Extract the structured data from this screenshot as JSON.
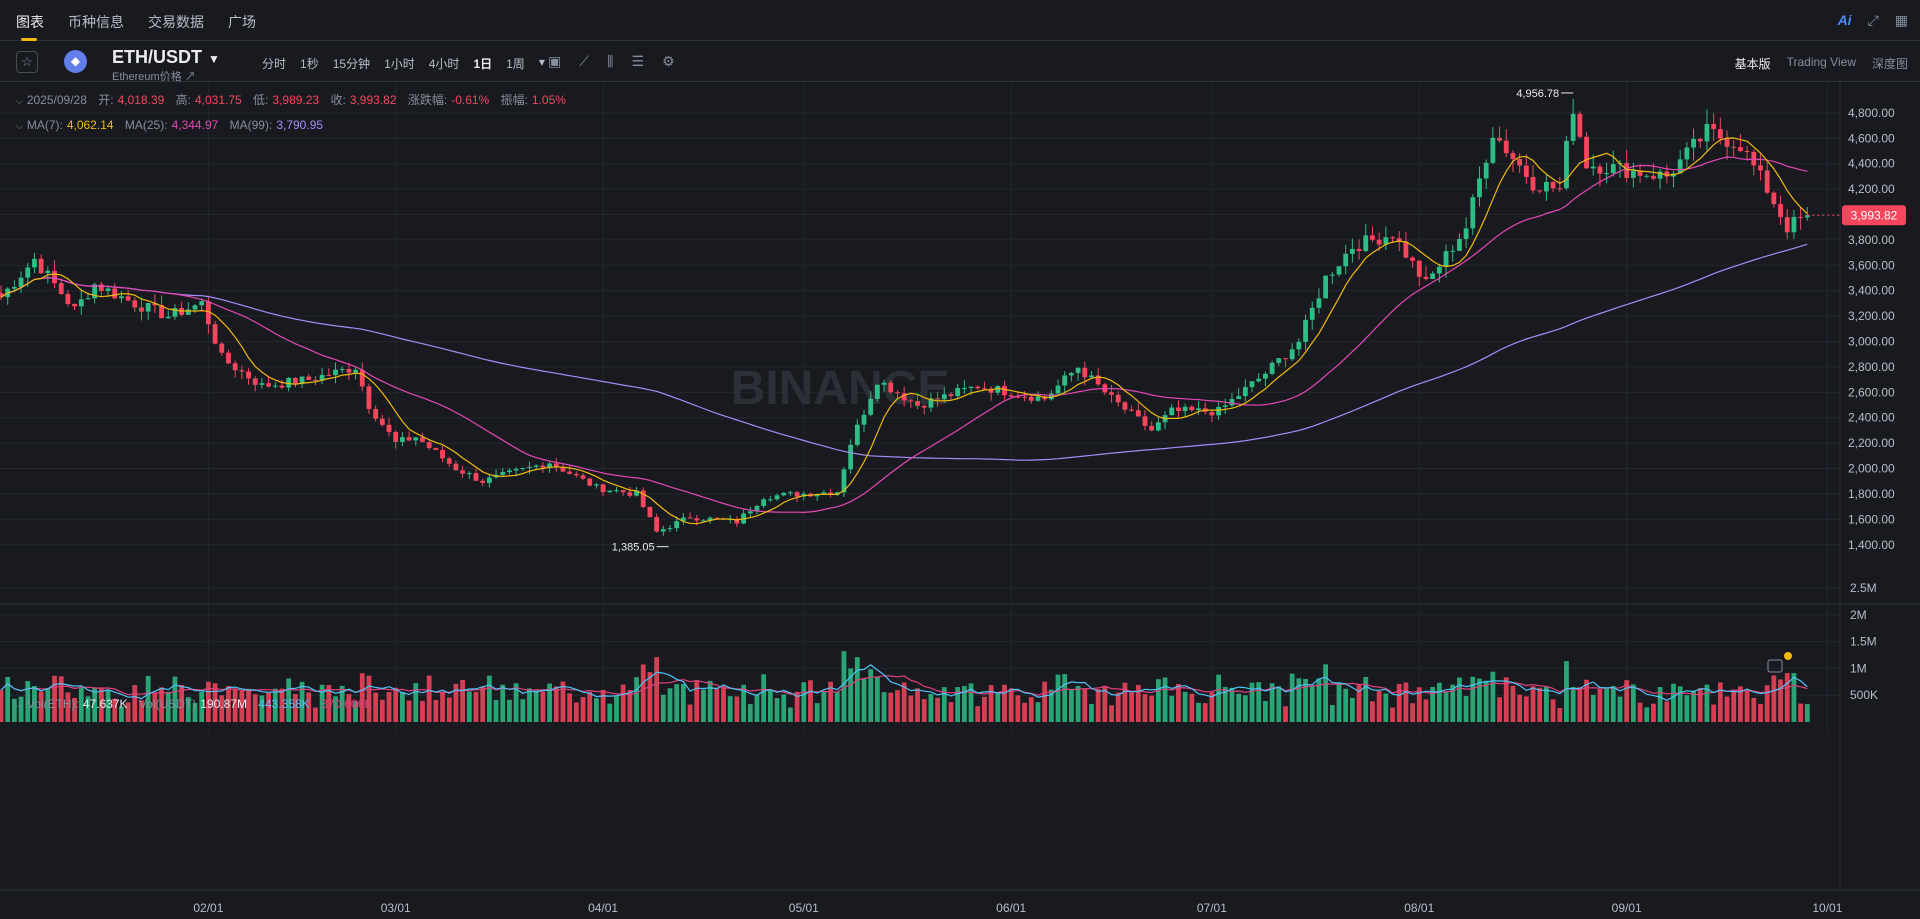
{
  "nav": {
    "tabs": [
      "图表",
      "币种信息",
      "交易数据",
      "广场"
    ],
    "ai_label": "Ai"
  },
  "symbol": {
    "pair": "ETH/USDT",
    "subtitle": "Ethereum价格 ↗",
    "logo_icon": "ethereum-icon"
  },
  "intervals": [
    "分时",
    "1秒",
    "15分钟",
    "1小时",
    "4小时",
    "1日",
    "1周"
  ],
  "interval_selected": "1日",
  "views": [
    "基本版",
    "Trading View",
    "深度图"
  ],
  "view_selected": "基本版",
  "ohlc": {
    "date": "2025/09/28",
    "open_label": "开:",
    "open": "4,018.39",
    "high_label": "高:",
    "high": "4,031.75",
    "low_label": "低:",
    "low": "3,989.23",
    "close_label": "收:",
    "close": "3,993.82",
    "change_label": "涨跌幅:",
    "change": "-0.61%",
    "amp_label": "振幅:",
    "amp": "1.05%"
  },
  "ma": {
    "ma7_label": "MA(7):",
    "ma7": "4,062.14",
    "ma25_label": "MA(25):",
    "ma25": "4,344.97",
    "ma99_label": "MA(99):",
    "ma99": "3,790.95"
  },
  "vol_legend": {
    "vol_eth_label": "Vol(ETH):",
    "vol_eth": "47.637K",
    "vol_usdt_label": "Vol(USDT)",
    "vol_usdt": "190.87M",
    "vol_ma1": "443.358K",
    "vol_ma2": "370.606K"
  },
  "watermark": "BINANCE",
  "colors": {
    "up": "#2ebd85",
    "down": "#f6465d",
    "ma7": "#f0b90b",
    "ma25": "#e548b4",
    "ma99": "#a78bfa",
    "vol_ma1": "#4fc3f7",
    "vol_ma2": "#e0407e",
    "bg": "#181a20",
    "grid": "#23262e",
    "accent": "#f0b90b"
  },
  "chart_data": {
    "type": "candlestick",
    "x_ticks": [
      "02/01",
      "03/01",
      "04/01",
      "05/01",
      "06/01",
      "07/01",
      "08/01",
      "09/01",
      "10/01"
    ],
    "y_ticks": [
      "4,800.00",
      "4,600.00",
      "4,400.00",
      "4,200.00",
      "4,000.00",
      "3,800.00",
      "3,600.00",
      "3,400.00",
      "3,200.00",
      "3,000.00",
      "2,800.00",
      "2,600.00",
      "2,400.00",
      "2,200.00",
      "2,000.00",
      "1,800.00",
      "1,600.00",
      "1,400.00"
    ],
    "ylim": [
      1280,
      4980
    ],
    "high_marker": {
      "date": "2025-08-24",
      "label": "4,956.78",
      "value": 4956.78
    },
    "low_marker": {
      "date": "2025-04-09",
      "label": "1,385.05",
      "value": 1385.05
    },
    "last_price": {
      "label": "3,993.82",
      "value": 3993.82
    },
    "close_keypoints": [
      [
        "2025-01-01",
        3350
      ],
      [
        "2025-01-06",
        3650
      ],
      [
        "2025-01-12",
        3250
      ],
      [
        "2025-01-15",
        3450
      ],
      [
        "2025-01-21",
        3300
      ],
      [
        "2025-01-26",
        3200
      ],
      [
        "2025-01-31",
        3300
      ],
      [
        "2025-02-03",
        2870
      ],
      [
        "2025-02-09",
        2650
      ],
      [
        "2025-02-16",
        2700
      ],
      [
        "2025-02-23",
        2800
      ],
      [
        "2025-02-25",
        2500
      ],
      [
        "2025-03-01",
        2200
      ],
      [
        "2025-03-04",
        2250
      ],
      [
        "2025-03-10",
        2000
      ],
      [
        "2025-03-14",
        1900
      ],
      [
        "2025-03-24",
        2050
      ],
      [
        "2025-03-31",
        1850
      ],
      [
        "2025-04-06",
        1800
      ],
      [
        "2025-04-09",
        1500
      ],
      [
        "2025-04-14",
        1620
      ],
      [
        "2025-04-21",
        1580
      ],
      [
        "2025-04-25",
        1780
      ],
      [
        "2025-05-06",
        1820
      ],
      [
        "2025-05-08",
        2200
      ],
      [
        "2025-05-12",
        2700
      ],
      [
        "2025-05-18",
        2500
      ],
      [
        "2025-05-27",
        2650
      ],
      [
        "2025-06-06",
        2550
      ],
      [
        "2025-06-11",
        2800
      ],
      [
        "2025-06-16",
        2550
      ],
      [
        "2025-06-22",
        2300
      ],
      [
        "2025-06-25",
        2450
      ],
      [
        "2025-07-02",
        2450
      ],
      [
        "2025-07-09",
        2750
      ],
      [
        "2025-07-14",
        3000
      ],
      [
        "2025-07-18",
        3500
      ],
      [
        "2025-07-22",
        3750
      ],
      [
        "2025-07-28",
        3850
      ],
      [
        "2025-08-02",
        3450
      ],
      [
        "2025-08-08",
        3900
      ],
      [
        "2025-08-12",
        4650
      ],
      [
        "2025-08-18",
        4250
      ],
      [
        "2025-08-22",
        4200
      ],
      [
        "2025-08-24",
        4850
      ],
      [
        "2025-08-26",
        4400
      ],
      [
        "2025-09-01",
        4350
      ],
      [
        "2025-09-07",
        4300
      ],
      [
        "2025-09-13",
        4650
      ],
      [
        "2025-09-18",
        4550
      ],
      [
        "2025-09-22",
        4200
      ],
      [
        "2025-09-25",
        3900
      ],
      [
        "2025-09-28",
        3993.82
      ]
    ],
    "volume": {
      "yticks": [
        "2.5M",
        "2M",
        "1.5M",
        "1M",
        "500K"
      ],
      "ylim": [
        0,
        2.8
      ],
      "unit": "M"
    }
  }
}
